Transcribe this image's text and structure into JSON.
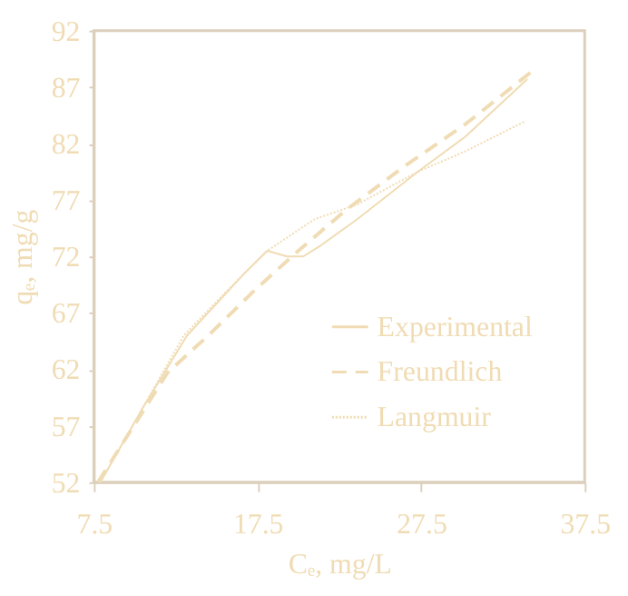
{
  "chart_data": {
    "type": "line",
    "xlabel": "Cₑ, mg/L",
    "ylabel": "qₑ, mg/g",
    "xlim": [
      7.5,
      37.5
    ],
    "xticks": [
      7.5,
      17.5,
      27.5,
      37.5
    ],
    "ylim": [
      52,
      92
    ],
    "yticks": [
      52,
      57,
      62,
      67,
      72,
      77,
      82,
      87,
      92
    ],
    "grid": false,
    "legend": "bottom right",
    "marker": "none",
    "series": [
      {
        "name": "Experimental",
        "color": "#f0dcb4",
        "line_style": "solid",
        "x": [
          7.9,
          10.5,
          13.2,
          16.7,
          18.1,
          19.3,
          20.3,
          21.4,
          23.6,
          27.3,
          30.2,
          34.0
        ],
        "values": [
          52,
          58.6,
          65.0,
          70.5,
          72.5,
          72.0,
          72.0,
          73.0,
          75.3,
          79.5,
          82.6,
          87.7
        ]
      },
      {
        "name": "Freundlich",
        "color": "#f0dcb4",
        "line_style": "dashed",
        "x": [
          7.75,
          12.0,
          14.5,
          17.4,
          20.0,
          22.9,
          26.6,
          30.2,
          34.2
        ],
        "values": [
          52,
          61.7,
          65.0,
          69.1,
          72.5,
          76.1,
          80.1,
          83.7,
          88.3
        ]
      },
      {
        "name": "Langmuir",
        "color": "#f0dcb4",
        "line_style": "dotted",
        "x": [
          7.9,
          13.0,
          15.6,
          18.1,
          21.0,
          23.6,
          27.3,
          30.2,
          33.9
        ],
        "values": [
          52,
          65.0,
          68.9,
          72.5,
          75.3,
          76.6,
          79.5,
          81.3,
          84.0
        ]
      }
    ]
  }
}
